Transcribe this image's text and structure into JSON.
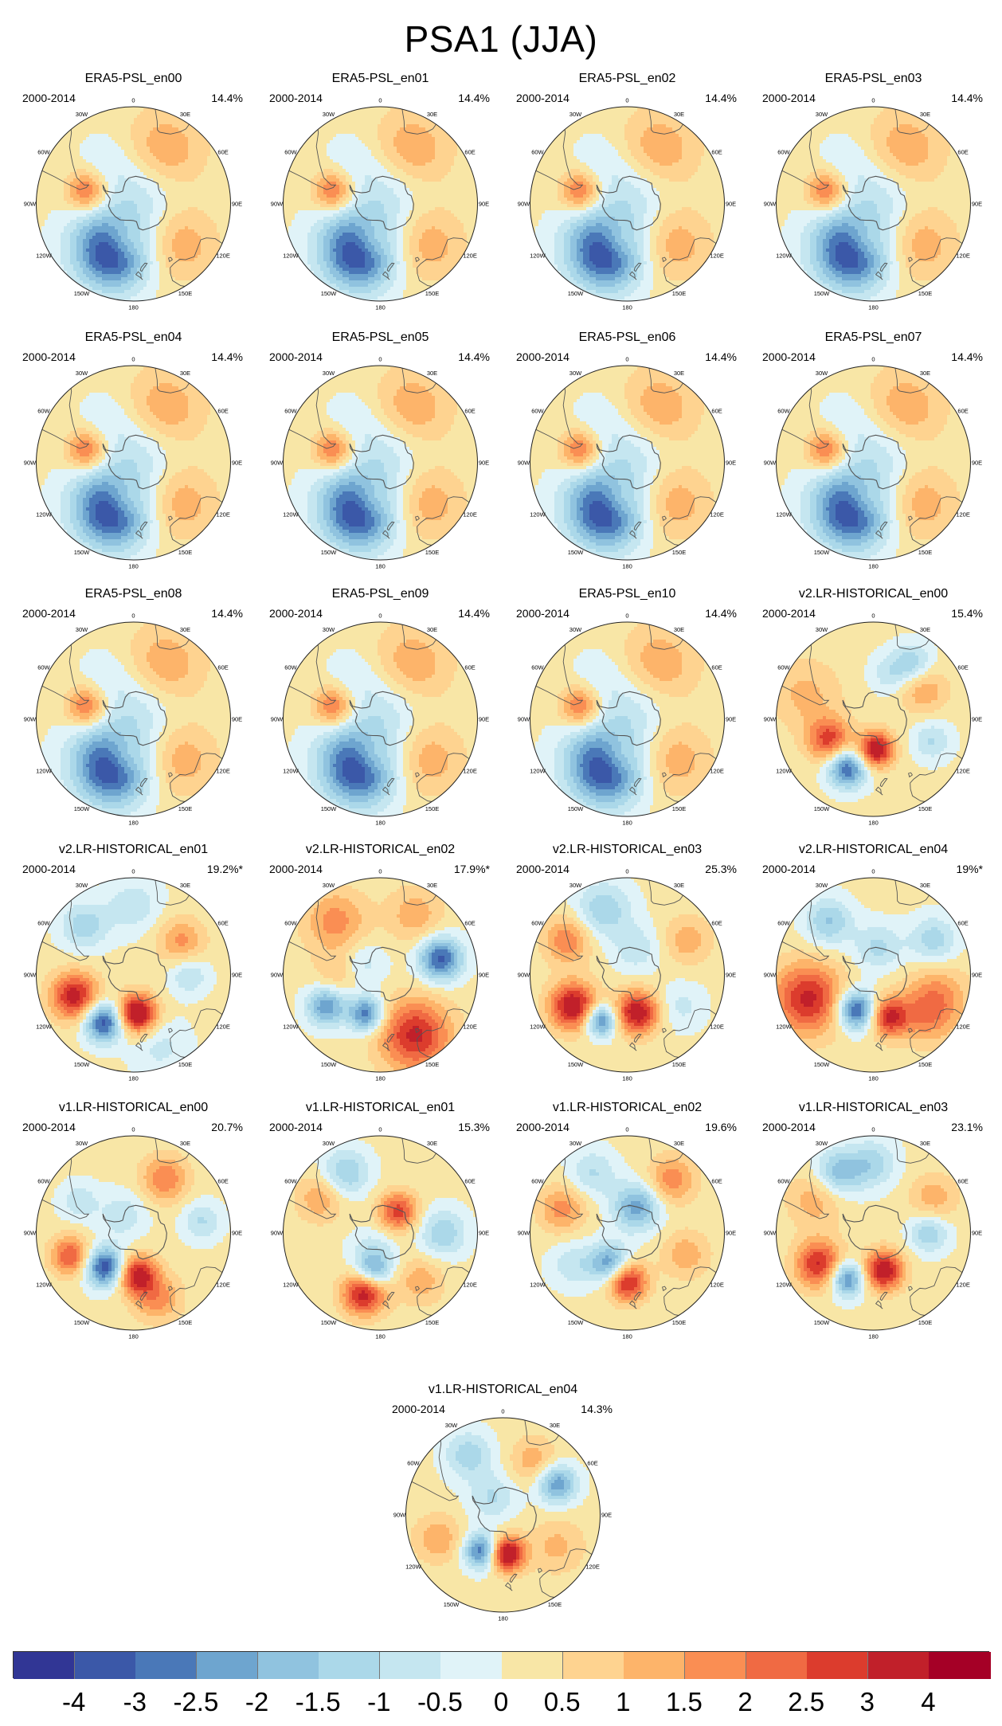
{
  "title": "PSA1 (JJA)",
  "period": "2000-2014",
  "lon_labels": [
    "0",
    "30E",
    "60E",
    "90E",
    "120E",
    "150E",
    "180",
    "150W",
    "120W",
    "90W",
    "60W",
    "30W"
  ],
  "colorbar": {
    "colors": [
      "#313695",
      "#3b58a8",
      "#4a78b8",
      "#6ea5cf",
      "#90c3df",
      "#abd8e9",
      "#c5e6f0",
      "#e0f3f8",
      "#f8e6a6",
      "#fed390",
      "#fdb46a",
      "#fa8e53",
      "#f06a43",
      "#dc3c2d",
      "#c1202a",
      "#a50026"
    ],
    "tick_labels": [
      "-4",
      "-3",
      "-2.5",
      "-2",
      "-1.5",
      "-1",
      "-0.5",
      "0",
      "0.5",
      "1",
      "1.5",
      "2",
      "2.5",
      "3",
      "4"
    ]
  },
  "panels": [
    {
      "title": "ERA5-PSL_en00",
      "pct": "14.4%",
      "blobs": [
        [
          -50,
          200,
          -2.8,
          18
        ],
        [
          -62,
          195,
          1.2,
          10
        ],
        [
          -55,
          220,
          -1.4,
          20
        ],
        [
          -45,
          30,
          1.3,
          20
        ],
        [
          -55,
          285,
          2.2,
          10
        ],
        [
          -45,
          130,
          1.2,
          18
        ],
        [
          -80,
          45,
          -0.9,
          18
        ],
        [
          -55,
          330,
          -0.6,
          15
        ]
      ]
    },
    {
      "title": "ERA5-PSL_en01",
      "pct": "14.4%",
      "blobs": [
        [
          -50,
          200,
          -2.8,
          18
        ],
        [
          -62,
          195,
          1.2,
          10
        ],
        [
          -55,
          220,
          -1.4,
          20
        ],
        [
          -45,
          30,
          1.3,
          20
        ],
        [
          -55,
          285,
          2.2,
          10
        ],
        [
          -45,
          130,
          1.2,
          18
        ],
        [
          -80,
          45,
          -0.9,
          18
        ],
        [
          -55,
          330,
          -0.6,
          15
        ]
      ]
    },
    {
      "title": "ERA5-PSL_en02",
      "pct": "14.4%",
      "blobs": [
        [
          -50,
          200,
          -2.8,
          18
        ],
        [
          -62,
          195,
          1.2,
          10
        ],
        [
          -55,
          220,
          -1.4,
          20
        ],
        [
          -45,
          30,
          1.3,
          20
        ],
        [
          -55,
          285,
          2.2,
          10
        ],
        [
          -45,
          130,
          1.2,
          18
        ],
        [
          -80,
          45,
          -0.9,
          18
        ],
        [
          -55,
          330,
          -0.6,
          15
        ]
      ]
    },
    {
      "title": "ERA5-PSL_en03",
      "pct": "14.4%",
      "blobs": [
        [
          -50,
          200,
          -2.8,
          18
        ],
        [
          -62,
          195,
          1.2,
          10
        ],
        [
          -55,
          220,
          -1.4,
          20
        ],
        [
          -45,
          30,
          1.3,
          20
        ],
        [
          -55,
          285,
          2.2,
          10
        ],
        [
          -45,
          130,
          1.2,
          18
        ],
        [
          -80,
          45,
          -0.9,
          18
        ],
        [
          -55,
          330,
          -0.6,
          15
        ]
      ]
    },
    {
      "title": "ERA5-PSL_en04",
      "pct": "14.4%",
      "blobs": [
        [
          -50,
          200,
          -2.8,
          18
        ],
        [
          -62,
          195,
          1.2,
          10
        ],
        [
          -55,
          220,
          -1.4,
          20
        ],
        [
          -45,
          30,
          1.3,
          20
        ],
        [
          -55,
          285,
          2.2,
          10
        ],
        [
          -45,
          130,
          1.2,
          18
        ],
        [
          -80,
          45,
          -0.9,
          18
        ],
        [
          -55,
          330,
          -0.6,
          15
        ]
      ]
    },
    {
      "title": "ERA5-PSL_en05",
      "pct": "14.4%",
      "blobs": [
        [
          -50,
          200,
          -2.8,
          18
        ],
        [
          -62,
          195,
          1.2,
          10
        ],
        [
          -55,
          220,
          -1.4,
          20
        ],
        [
          -45,
          30,
          1.3,
          20
        ],
        [
          -55,
          285,
          2.2,
          10
        ],
        [
          -45,
          130,
          1.2,
          18
        ],
        [
          -80,
          45,
          -0.9,
          18
        ],
        [
          -55,
          330,
          -0.6,
          15
        ]
      ]
    },
    {
      "title": "ERA5-PSL_en06",
      "pct": "14.4%",
      "blobs": [
        [
          -50,
          200,
          -2.8,
          18
        ],
        [
          -62,
          195,
          1.2,
          10
        ],
        [
          -55,
          220,
          -1.4,
          20
        ],
        [
          -45,
          30,
          1.3,
          20
        ],
        [
          -55,
          285,
          2.2,
          10
        ],
        [
          -45,
          130,
          1.2,
          18
        ],
        [
          -80,
          45,
          -0.9,
          18
        ],
        [
          -55,
          330,
          -0.6,
          15
        ]
      ]
    },
    {
      "title": "ERA5-PSL_en07",
      "pct": "14.4%",
      "blobs": [
        [
          -50,
          200,
          -2.8,
          18
        ],
        [
          -62,
          195,
          1.2,
          10
        ],
        [
          -55,
          220,
          -1.4,
          20
        ],
        [
          -45,
          30,
          1.3,
          20
        ],
        [
          -55,
          285,
          2.2,
          10
        ],
        [
          -45,
          130,
          1.2,
          18
        ],
        [
          -80,
          45,
          -0.9,
          18
        ],
        [
          -55,
          330,
          -0.6,
          15
        ]
      ]
    },
    {
      "title": "ERA5-PSL_en08",
      "pct": "14.4%",
      "blobs": [
        [
          -50,
          200,
          -2.8,
          18
        ],
        [
          -62,
          195,
          1.2,
          10
        ],
        [
          -55,
          220,
          -1.4,
          20
        ],
        [
          -45,
          30,
          1.3,
          20
        ],
        [
          -55,
          285,
          2.2,
          10
        ],
        [
          -45,
          130,
          1.2,
          18
        ],
        [
          -80,
          45,
          -0.9,
          18
        ],
        [
          -55,
          330,
          -0.6,
          15
        ]
      ]
    },
    {
      "title": "ERA5-PSL_en09",
      "pct": "14.4%",
      "blobs": [
        [
          -50,
          200,
          -2.8,
          18
        ],
        [
          -62,
          195,
          1.2,
          10
        ],
        [
          -55,
          220,
          -1.4,
          20
        ],
        [
          -45,
          30,
          1.3,
          20
        ],
        [
          -55,
          285,
          2.2,
          10
        ],
        [
          -45,
          130,
          1.2,
          18
        ],
        [
          -80,
          45,
          -0.9,
          18
        ],
        [
          -55,
          330,
          -0.6,
          15
        ]
      ]
    },
    {
      "title": "ERA5-PSL_en10",
      "pct": "14.4%",
      "blobs": [
        [
          -50,
          200,
          -2.8,
          18
        ],
        [
          -62,
          195,
          1.2,
          10
        ],
        [
          -55,
          220,
          -1.4,
          20
        ],
        [
          -45,
          30,
          1.3,
          20
        ],
        [
          -55,
          285,
          2.2,
          10
        ],
        [
          -45,
          130,
          1.2,
          18
        ],
        [
          -80,
          45,
          -0.9,
          18
        ],
        [
          -55,
          330,
          -0.6,
          15
        ]
      ]
    },
    {
      "title": "v2.LR-HISTORICAL_en00",
      "pct": "15.4%",
      "blobs": [
        [
          -68,
          175,
          3.6,
          9
        ],
        [
          -50,
          208,
          -3.2,
          10
        ],
        [
          -55,
          245,
          2.6,
          11
        ],
        [
          -40,
          35,
          -1.5,
          10
        ],
        [
          -48,
          60,
          1.3,
          12
        ],
        [
          -38,
          290,
          1.0,
          18
        ],
        [
          -45,
          110,
          -1.2,
          10
        ],
        [
          -55,
          20,
          -1.0,
          10
        ]
      ]
    },
    {
      "title": "v2.LR-HISTORICAL_en01",
      "pct": "19.2%*",
      "blobs": [
        [
          -62,
          175,
          4.0,
          10
        ],
        [
          -50,
          212,
          -3.6,
          10
        ],
        [
          -45,
          250,
          3.2,
          12
        ],
        [
          -40,
          315,
          -1.5,
          12
        ],
        [
          -48,
          55,
          1.5,
          12
        ],
        [
          -50,
          90,
          -1.2,
          10
        ],
        [
          -35,
          160,
          -0.8,
          15
        ],
        [
          -40,
          0,
          -1.0,
          14
        ]
      ]
    },
    {
      "title": "v2.LR-HISTORICAL_en02",
      "pct": "17.9%*",
      "blobs": [
        [
          -60,
          200,
          -3.0,
          9
        ],
        [
          -45,
          75,
          -3.3,
          11
        ],
        [
          -45,
          240,
          -2.6,
          10
        ],
        [
          -40,
          150,
          3.0,
          18
        ],
        [
          -40,
          320,
          1.6,
          16
        ],
        [
          -75,
          300,
          -1.0,
          12
        ],
        [
          -40,
          30,
          1.2,
          14
        ],
        [
          -60,
          270,
          0.9,
          12
        ]
      ]
    },
    {
      "title": "v2.LR-HISTORICAL_en03",
      "pct": "25.3%",
      "blobs": [
        [
          -62,
          165,
          3.4,
          11
        ],
        [
          -52,
          210,
          -3.2,
          8
        ],
        [
          -45,
          240,
          3.5,
          12
        ],
        [
          -40,
          300,
          1.8,
          12
        ],
        [
          -40,
          340,
          -1.6,
          14
        ],
        [
          -40,
          60,
          1.2,
          12
        ],
        [
          -70,
          20,
          -1.0,
          12
        ],
        [
          -45,
          120,
          -0.8,
          12
        ]
      ]
    },
    {
      "title": "v2.LR-HISTORICAL_en04",
      "pct": "19%*",
      "blobs": [
        [
          -62,
          205,
          -3.6,
          10
        ],
        [
          -58,
          160,
          3.0,
          10
        ],
        [
          -40,
          250,
          3.0,
          18
        ],
        [
          -40,
          320,
          -1.7,
          12
        ],
        [
          -40,
          60,
          -1.5,
          12
        ],
        [
          -70,
          10,
          -1.3,
          12
        ],
        [
          -42,
          110,
          1.6,
          16
        ],
        [
          -40,
          130,
          1.0,
          14
        ]
      ]
    },
    {
      "title": "v1.LR-HISTORICAL_en00",
      "pct": "20.7%",
      "blobs": [
        [
          -58,
          220,
          -3.6,
          10
        ],
        [
          -60,
          175,
          3.2,
          10
        ],
        [
          -42,
          250,
          2.4,
          10
        ],
        [
          -45,
          30,
          1.8,
          12
        ],
        [
          -40,
          80,
          -1.2,
          10
        ],
        [
          -40,
          160,
          1.6,
          12
        ],
        [
          -75,
          330,
          -1.0,
          12
        ],
        [
          -45,
          300,
          -1.0,
          10
        ]
      ]
    },
    {
      "title": "v1.LR-HISTORICAL_en01",
      "pct": "15.3%",
      "blobs": [
        [
          -45,
          195,
          3.3,
          11
        ],
        [
          -70,
          40,
          2.6,
          10
        ],
        [
          -62,
          190,
          -2.0,
          9
        ],
        [
          -40,
          330,
          -1.7,
          12
        ],
        [
          -45,
          90,
          -1.6,
          12
        ],
        [
          -40,
          300,
          1.3,
          12
        ],
        [
          -45,
          140,
          1.2,
          12
        ],
        [
          -75,
          200,
          -1.0,
          12
        ]
      ]
    },
    {
      "title": "v1.LR-HISTORICAL_en02",
      "pct": "19.6%",
      "blobs": [
        [
          -55,
          180,
          3.2,
          10
        ],
        [
          -65,
          210,
          -2.6,
          10
        ],
        [
          -70,
          20,
          -2.4,
          12
        ],
        [
          -40,
          40,
          1.7,
          12
        ],
        [
          -40,
          290,
          1.6,
          12
        ],
        [
          -40,
          330,
          -1.2,
          12
        ],
        [
          -45,
          110,
          1.2,
          12
        ],
        [
          -45,
          240,
          -1.0,
          12
        ]
      ]
    },
    {
      "title": "v1.LR-HISTORICAL_en03",
      "pct": "23.1%",
      "blobs": [
        [
          -62,
          165,
          3.5,
          10
        ],
        [
          -52,
          210,
          -3.0,
          9
        ],
        [
          -45,
          240,
          3.0,
          12
        ],
        [
          -40,
          330,
          -2.0,
          12
        ],
        [
          -40,
          60,
          1.2,
          12
        ],
        [
          -50,
          90,
          -1.6,
          10
        ],
        [
          -40,
          0,
          -1.4,
          12
        ],
        [
          -42,
          300,
          1.2,
          14
        ]
      ]
    },
    {
      "title": "v1.LR-HISTORICAL_en04",
      "pct": "14.3%",
      "blobs": [
        [
          -62,
          175,
          4.0,
          9
        ],
        [
          -60,
          210,
          -3.2,
          9
        ],
        [
          -45,
          60,
          -2.6,
          10
        ],
        [
          -40,
          330,
          -1.5,
          12
        ],
        [
          -75,
          330,
          -1.2,
          12
        ],
        [
          -40,
          250,
          1.3,
          12
        ],
        [
          -45,
          30,
          1.2,
          12
        ],
        [
          -45,
          120,
          1.0,
          14
        ]
      ]
    }
  ]
}
